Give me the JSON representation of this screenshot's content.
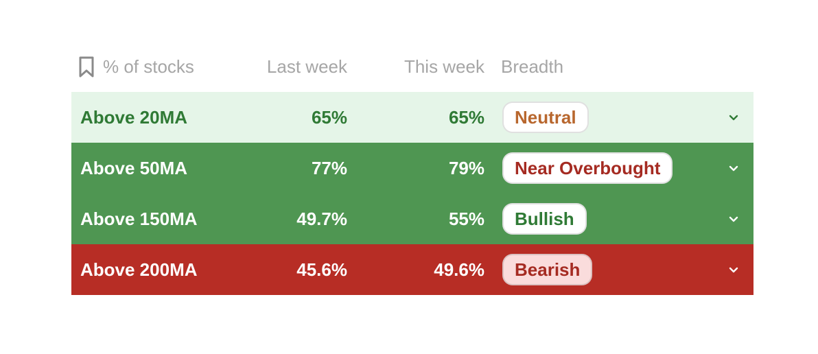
{
  "header": {
    "pct_label": "% of stocks",
    "last_label": "Last week",
    "this_label": "This week",
    "breadth_label": "Breadth",
    "bookmark_icon": "bookmark-icon"
  },
  "rows": [
    {
      "name": "Above 20MA",
      "last": "65%",
      "this": "65%",
      "breadth": "Neutral",
      "row_bg": "#e5f5e8",
      "text_color": "#2f7a35",
      "badge_bg": "#ffffff",
      "badge_color": "#b8672e",
      "chevron_color": "#2f7a35"
    },
    {
      "name": "Above 50MA",
      "last": "77%",
      "this": "79%",
      "breadth": "Near Overbought",
      "row_bg": "#4f9652",
      "text_color": "#ffffff",
      "badge_bg": "#ffffff",
      "badge_color": "#a52b22",
      "chevron_color": "#ffffff"
    },
    {
      "name": "Above 150MA",
      "last": "49.7%",
      "this": "55%",
      "breadth": "Bullish",
      "row_bg": "#4f9652",
      "text_color": "#ffffff",
      "badge_bg": "#ffffff",
      "badge_color": "#2f7a35",
      "chevron_color": "#ffffff"
    },
    {
      "name": "Above 200MA",
      "last": "45.6%",
      "this": "49.6%",
      "breadth": "Bearish",
      "row_bg": "#b72d25",
      "text_color": "#ffffff",
      "badge_bg": "#fadcdc",
      "badge_color": "#a52b22",
      "chevron_color": "#ffffff"
    }
  ]
}
